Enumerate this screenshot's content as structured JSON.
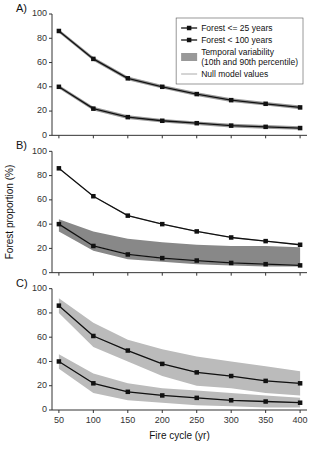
{
  "chart_data": [
    {
      "type": "line",
      "title": "A)",
      "x": [
        50,
        100,
        150,
        200,
        250,
        300,
        350,
        400
      ],
      "series": [
        {
          "name": "Forest <= 25 years",
          "type": "line",
          "color": "#111111",
          "marker": "square",
          "values": [
            40,
            22,
            15,
            12,
            10,
            8,
            7,
            6
          ]
        },
        {
          "name": "Forest < 100 years",
          "type": "line",
          "color": "#111111",
          "marker": "square",
          "values": [
            86,
            63,
            47,
            40,
            34,
            29,
            26,
            23
          ]
        },
        {
          "name": "Temporal variability\n(10th and 90th percentile)",
          "type": "band",
          "color": "#999999",
          "lower": [
            84.5,
            61.5,
            45.5,
            38.5,
            32.5,
            27.5,
            24.5,
            21.5
          ],
          "upper": [
            87.5,
            64.5,
            48.5,
            41.5,
            35.5,
            30.5,
            27.5,
            24.5
          ]
        },
        {
          "name": "Temporal variability\n(10th and 90th percentile)",
          "type": "band",
          "color": "#999999",
          "lower": [
            38.5,
            20.5,
            13.5,
            10.5,
            8.5,
            6.5,
            5.5,
            4.5
          ],
          "upper": [
            41.5,
            23.5,
            16.5,
            13.5,
            11.5,
            9.5,
            8.5,
            7.5
          ]
        },
        {
          "name": "Null model values",
          "type": "line",
          "color": "#aaaaaa",
          "values": [
            86,
            63,
            47,
            40,
            34,
            29,
            26,
            23
          ]
        },
        {
          "name": "Null model values",
          "type": "line",
          "color": "#aaaaaa",
          "values": [
            40,
            22,
            15,
            12,
            10,
            8,
            7,
            6
          ]
        }
      ],
      "xlim": [
        40,
        410
      ],
      "ylim": [
        0,
        100
      ],
      "xticks": [
        50,
        100,
        150,
        200,
        250,
        300,
        350,
        400
      ],
      "yticks": [
        0,
        20,
        40,
        60,
        80,
        100
      ],
      "grid": false,
      "legend": "upper right",
      "tick_labels": "y"
    },
    {
      "type": "line",
      "title": "B)",
      "ylabel": "Forest proportion (%)",
      "x": [
        50,
        100,
        150,
        200,
        250,
        300,
        350,
        400
      ],
      "series": [
        {
          "name": "Forest <= 25 years",
          "type": "line",
          "color": "#111111",
          "marker": "square",
          "values": [
            40,
            22,
            15,
            12,
            10,
            8,
            7,
            6
          ]
        },
        {
          "name": "Forest < 100 years",
          "type": "line",
          "color": "#111111",
          "marker": "square",
          "values": [
            86,
            63,
            47,
            40,
            34,
            29,
            26,
            23
          ]
        },
        {
          "name": "Temporal variability\n(10th and 90th percentile)",
          "type": "band",
          "color": "#888888",
          "lower": [
            34,
            18,
            11,
            9,
            7,
            6,
            5,
            5
          ],
          "upper": [
            44,
            34,
            28,
            25,
            23,
            22,
            22,
            21
          ]
        },
        {
          "name": "Null model values",
          "type": "line",
          "color": "#aaaaaa",
          "values": [
            86,
            63,
            47,
            40,
            34,
            29,
            26,
            23
          ]
        },
        {
          "name": "Null model values",
          "type": "line",
          "color": "#aaaaaa",
          "values": [
            40,
            22,
            15,
            12,
            10,
            8,
            7,
            6
          ]
        }
      ],
      "xlim": [
        40,
        410
      ],
      "ylim": [
        0,
        100
      ],
      "xticks": [
        50,
        100,
        150,
        200,
        250,
        300,
        350,
        400
      ],
      "yticks": [
        0,
        20,
        40,
        60,
        80,
        100
      ],
      "grid": false,
      "tick_labels": "y"
    },
    {
      "type": "line",
      "title": "C)",
      "xlabel": "Fire cycle (yr)",
      "x": [
        50,
        100,
        150,
        200,
        250,
        300,
        350,
        400
      ],
      "series": [
        {
          "name": "Forest <= 25 years",
          "type": "line",
          "color": "#111111",
          "marker": "square",
          "values": [
            40,
            22,
            15,
            12,
            10,
            8,
            7,
            6
          ]
        },
        {
          "name": "Forest < 100 years",
          "type": "line",
          "color": "#111111",
          "marker": "square",
          "values": [
            86,
            61,
            49,
            38,
            31,
            28,
            24,
            22
          ]
        },
        {
          "name": "Temporal variability\n(10th and 90th percentile)",
          "type": "band",
          "color": "#bbbbbb",
          "lower": [
            80,
            52,
            40,
            28,
            20,
            18,
            14,
            12
          ],
          "upper": [
            92,
            72,
            58,
            50,
            44,
            40,
            36,
            32
          ]
        },
        {
          "name": "Temporal variability\n(10th and 90th percentile)",
          "type": "band",
          "color": "#bbbbbb",
          "lower": [
            34,
            14,
            8,
            6,
            4,
            3,
            2,
            2
          ],
          "upper": [
            46,
            30,
            22,
            18,
            16,
            14,
            12,
            10
          ]
        },
        {
          "name": "Null model values",
          "type": "line",
          "color": "#aaaaaa",
          "values": [
            86,
            61,
            49,
            38,
            31,
            28,
            24,
            22
          ]
        },
        {
          "name": "Null model values",
          "type": "line",
          "color": "#aaaaaa",
          "values": [
            40,
            22,
            15,
            12,
            10,
            8,
            7,
            6
          ]
        }
      ],
      "xlim": [
        40,
        410
      ],
      "ylim": [
        0,
        100
      ],
      "xticks": [
        50,
        100,
        150,
        200,
        250,
        300,
        350,
        400
      ],
      "yticks": [
        0,
        20,
        40,
        60,
        80,
        100
      ],
      "grid": false
    }
  ]
}
